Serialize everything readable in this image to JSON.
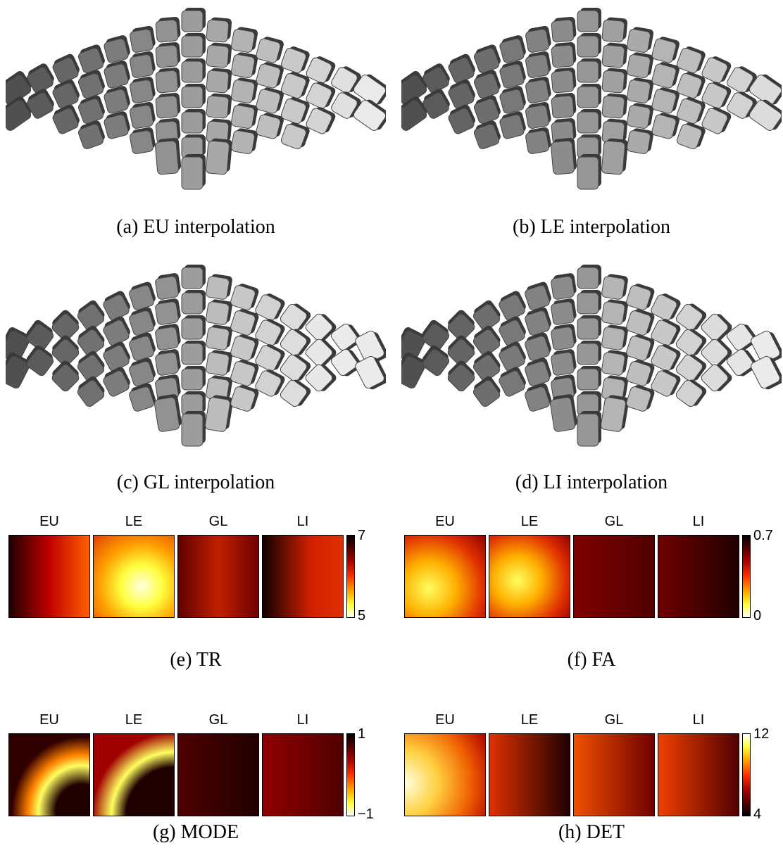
{
  "glyph_panels": [
    {
      "caption": "(a) EU interpolation"
    },
    {
      "caption": "(b) LE interpolation"
    },
    {
      "caption": "(c) GL interpolation"
    },
    {
      "caption": "(d) LI interpolation"
    }
  ],
  "map_panels": [
    {
      "methods": [
        "EU",
        "LE",
        "GL",
        "LI"
      ],
      "colorbar_ticks": [
        "7",
        "5"
      ],
      "caption": "(e) TR"
    },
    {
      "methods": [
        "EU",
        "LE",
        "GL",
        "LI"
      ],
      "colorbar_ticks": [
        "0.7",
        "0"
      ],
      "caption": "(f) FA"
    },
    {
      "methods": [
        "EU",
        "LE",
        "GL",
        "LI"
      ],
      "colorbar_ticks": [
        "1",
        "−1"
      ],
      "caption": "(g) MODE"
    },
    {
      "methods": [
        "EU",
        "LE",
        "GL",
        "LI"
      ],
      "colorbar_ticks": [
        "12",
        "4"
      ],
      "caption": "(h) DET"
    }
  ]
}
